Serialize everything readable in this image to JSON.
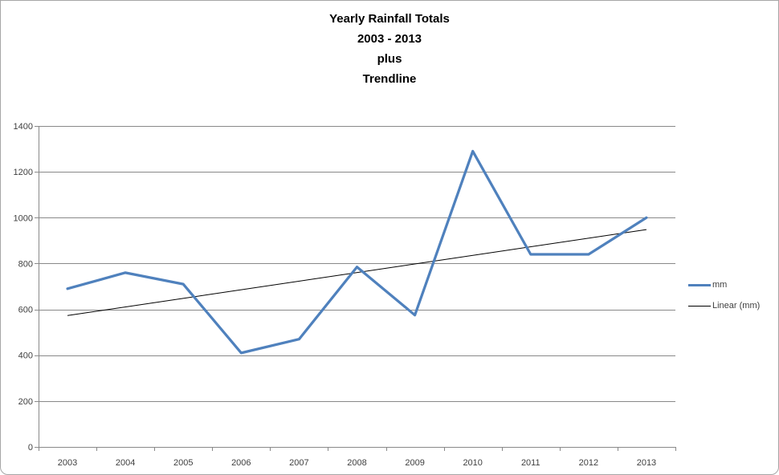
{
  "title": {
    "lines": [
      "Yearly Rainfall Totals",
      "2003 - 2013",
      "plus",
      "Trendline"
    ]
  },
  "chart_data": {
    "type": "line",
    "title": "Yearly Rainfall Totals 2003 - 2013 plus Trendline",
    "categories": [
      "2003",
      "2004",
      "2005",
      "2006",
      "2007",
      "2008",
      "2009",
      "2010",
      "2011",
      "2012",
      "2013"
    ],
    "series": [
      {
        "name": "mm",
        "type": "line",
        "values": [
          690,
          760,
          710,
          410,
          470,
          785,
          575,
          1290,
          840,
          840,
          1000
        ],
        "color": "#4F81BD",
        "stroke_width": 3.25
      },
      {
        "name": "Linear (mm)",
        "type": "trendline",
        "start_value": 573,
        "end_value": 948,
        "color": "#000000",
        "stroke_width": 1
      }
    ],
    "xlabel": "",
    "ylabel": "",
    "ylim": [
      0,
      1400
    ],
    "ytick_step": 200,
    "grid": true,
    "legend_position": "right"
  },
  "legend": {
    "items": [
      {
        "label": "mm",
        "swatch_color": "#4F81BD",
        "swatch_thickness": 3
      },
      {
        "label": "Linear (mm)",
        "swatch_color": "#000000",
        "swatch_thickness": 1
      }
    ]
  },
  "style": {
    "background": "#FFFFFF",
    "border_color": "#A6A6A6",
    "grid_color": "#898989",
    "axis_color": "#898989",
    "tick_label_color": "#3F3F3F",
    "title_color": "#000000"
  }
}
